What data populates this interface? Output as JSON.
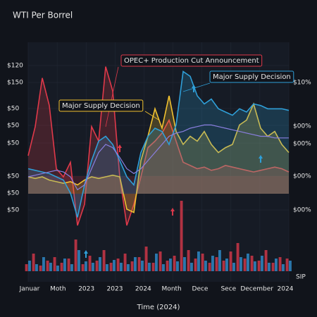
{
  "chart_data": {
    "type": "line",
    "title": "WTI Per Borrel",
    "x_title": "Time (2024)",
    "x_labels": [
      "Januar",
      "Moth",
      "2023",
      "2023",
      "2024",
      "Month",
      "Dece",
      "Sece",
      "December",
      "2024"
    ],
    "y_labels": [
      "$120",
      "$150",
      "$50",
      "$50",
      "$50",
      "$50",
      "$50",
      "$50"
    ],
    "y2_labels": [
      "$10%",
      "$00%",
      "$00%",
      "$00%",
      "$00%"
    ],
    "volume_label": "SIP",
    "annotations": [
      "OPEC+ Production Cut Announcement",
      "Major Supply Decision",
      "Major Supply Decision"
    ],
    "ylim": [
      0,
      100
    ],
    "series": [
      {
        "color": "#e0394a",
        "values": [
          43,
          61,
          91,
          74,
          35,
          30,
          39,
          0,
          13,
          61,
          52,
          98,
          83,
          30,
          0,
          13,
          30,
          48,
          52,
          57,
          65,
          52,
          39,
          37,
          35,
          36,
          34,
          35,
          37,
          36,
          35,
          34,
          33,
          34,
          35,
          36,
          35,
          33
        ]
      },
      {
        "color": "#f2c230",
        "values": [
          30,
          29,
          30,
          28,
          27,
          26,
          27,
          25,
          28,
          30,
          29,
          30,
          31,
          30,
          10,
          8,
          40,
          55,
          72,
          60,
          80,
          58,
          50,
          55,
          52,
          58,
          50,
          45,
          48,
          50,
          62,
          65,
          75,
          60,
          55,
          58,
          50,
          45
        ]
      },
      {
        "color": "#2f9fd8",
        "values": [
          35,
          34,
          33,
          32,
          30,
          28,
          20,
          5,
          25,
          40,
          52,
          55,
          50,
          40,
          30,
          25,
          45,
          55,
          60,
          58,
          50,
          62,
          95,
          92,
          80,
          75,
          78,
          72,
          70,
          68,
          72,
          70,
          75,
          74,
          72,
          72,
          72,
          71
        ]
      },
      {
        "color": "#8a7fe0",
        "values": [
          30,
          31,
          32,
          33,
          34,
          33,
          30,
          22,
          25,
          35,
          45,
          50,
          48,
          42,
          35,
          32,
          35,
          40,
          45,
          50,
          55,
          57,
          58,
          60,
          61,
          62,
          62,
          61,
          60,
          59,
          58,
          57,
          56,
          55,
          55,
          54,
          54,
          54
        ]
      }
    ],
    "volume_max": 100,
    "volume": [
      {
        "color": "#d8384a",
        "values": [
          10,
          25,
          8,
          15,
          20,
          12,
          18,
          45,
          10,
          22,
          15,
          30,
          12,
          18,
          25,
          14,
          20,
          35,
          12,
          28,
          15,
          22,
          100,
          30,
          18,
          25,
          12,
          20,
          15,
          28,
          40,
          18,
          22,
          15,
          30,
          12,
          20,
          18
        ]
      },
      {
        "color": "#2f8fd0",
        "values": [
          15,
          10,
          20,
          12,
          8,
          18,
          10,
          30,
          14,
          12,
          20,
          10,
          16,
          12,
          10,
          20,
          15,
          12,
          25,
          10,
          18,
          14,
          20,
          12,
          28,
          15,
          22,
          30,
          18,
          12,
          20,
          25,
          14,
          22,
          12,
          18,
          10,
          15
        ]
      }
    ]
  }
}
